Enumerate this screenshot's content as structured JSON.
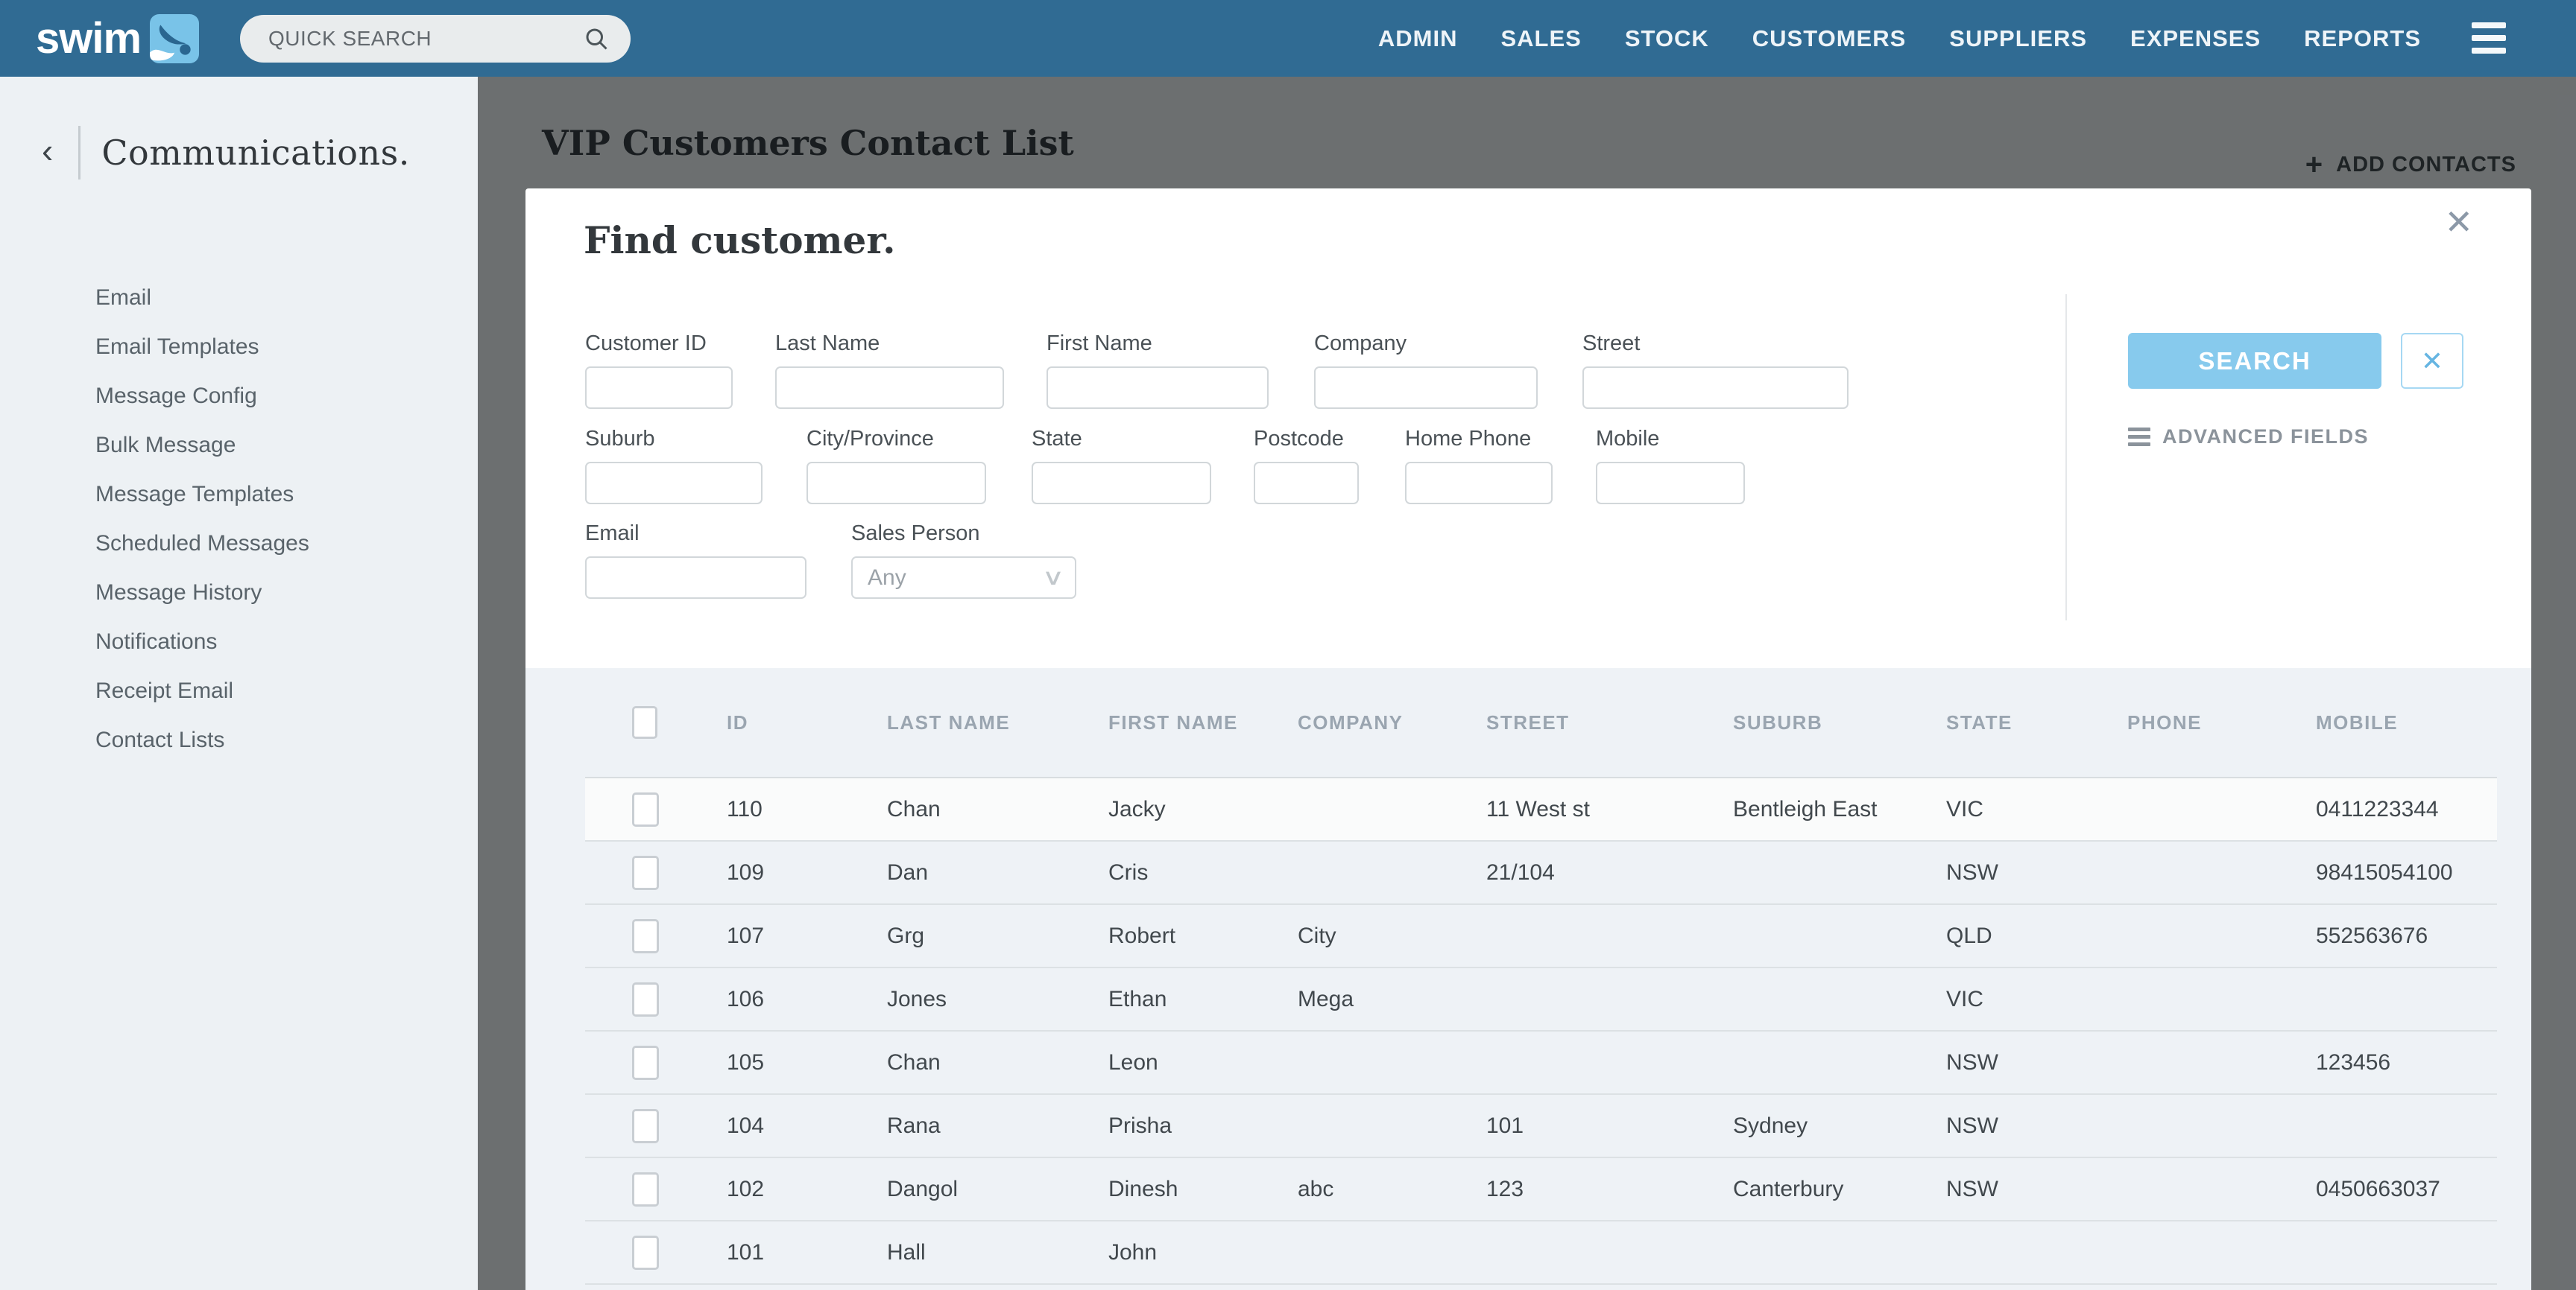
{
  "topbar": {
    "logo_text": "swim",
    "search_placeholder": "QUICK SEARCH",
    "nav": [
      {
        "label": "ADMIN"
      },
      {
        "label": "SALES"
      },
      {
        "label": "STOCK"
      },
      {
        "label": "CUSTOMERS"
      },
      {
        "label": "SUPPLIERS"
      },
      {
        "label": "EXPENSES"
      },
      {
        "label": "REPORTS"
      }
    ]
  },
  "sidebar": {
    "back_icon": "‹",
    "title": "Communications.",
    "items": [
      "Email",
      "Email Templates",
      "Message Config",
      "Bulk Message",
      "Message Templates",
      "Scheduled Messages",
      "Message History",
      "Notifications",
      "Receipt Email",
      "Contact Lists"
    ]
  },
  "page": {
    "title": "VIP Customers Contact List",
    "add_icon": "+",
    "add_contacts": "ADD CONTACTS"
  },
  "modal": {
    "title": "Find customer.",
    "close_icon": "✕",
    "labels": {
      "customer_id": "Customer ID",
      "last_name": "Last Name",
      "first_name": "First Name",
      "company": "Company",
      "street": "Street",
      "suburb": "Suburb",
      "city_province": "City/Province",
      "state": "State",
      "postcode": "Postcode",
      "home_phone": "Home Phone",
      "mobile": "Mobile",
      "email": "Email",
      "sales_person": "Sales Person"
    },
    "sales_person_value": "Any",
    "select_chevron": "∨",
    "search_button": "SEARCH",
    "clear_icon": "✕",
    "advanced_fields": "ADVANCED FIELDS"
  },
  "table": {
    "headers": [
      "ID",
      "LAST NAME",
      "FIRST NAME",
      "COMPANY",
      "STREET",
      "SUBURB",
      "STATE",
      "PHONE",
      "MOBILE"
    ],
    "rows": [
      {
        "id": "110",
        "last": "Chan",
        "first": "Jacky",
        "company": "",
        "street": "11 West st",
        "suburb": "Bentleigh East",
        "state": "VIC",
        "phone": "",
        "mobile": "0411223344",
        "highlight": true
      },
      {
        "id": "109",
        "last": "Dan",
        "first": "Cris",
        "company": "",
        "street": "21/104",
        "suburb": "",
        "state": "NSW",
        "phone": "",
        "mobile": "98415054100",
        "highlight": false
      },
      {
        "id": "107",
        "last": "Grg",
        "first": "Robert",
        "company": "City",
        "street": "",
        "suburb": "",
        "state": "QLD",
        "phone": "",
        "mobile": "552563676",
        "highlight": false
      },
      {
        "id": "106",
        "last": "Jones",
        "first": "Ethan",
        "company": "Mega",
        "street": "",
        "suburb": "",
        "state": "VIC",
        "phone": "",
        "mobile": "",
        "highlight": false
      },
      {
        "id": "105",
        "last": "Chan",
        "first": "Leon",
        "company": "",
        "street": "",
        "suburb": "",
        "state": "NSW",
        "phone": "",
        "mobile": "123456",
        "highlight": false
      },
      {
        "id": "104",
        "last": "Rana",
        "first": "Prisha",
        "company": "",
        "street": "101",
        "suburb": "Sydney",
        "state": "NSW",
        "phone": "",
        "mobile": "",
        "highlight": false
      },
      {
        "id": "102",
        "last": "Dangol",
        "first": "Dinesh",
        "company": "abc",
        "street": "123",
        "suburb": "Canterbury",
        "state": "NSW",
        "phone": "",
        "mobile": "0450663037",
        "highlight": false
      },
      {
        "id": "101",
        "last": "Hall",
        "first": "John",
        "company": "",
        "street": "",
        "suburb": "",
        "state": "",
        "phone": "",
        "mobile": "",
        "highlight": false
      }
    ]
  },
  "colors": {
    "topbar_bg": "#306b93",
    "logo_icon_bg": "#79c3e8",
    "accent_blue": "#87caed",
    "sidebar_bg": "#edf1f4",
    "table_section_bg": "#eef2f6",
    "table_header_text": "#9aa5b0",
    "overlay": "rgba(10,14,16,0.58)"
  }
}
